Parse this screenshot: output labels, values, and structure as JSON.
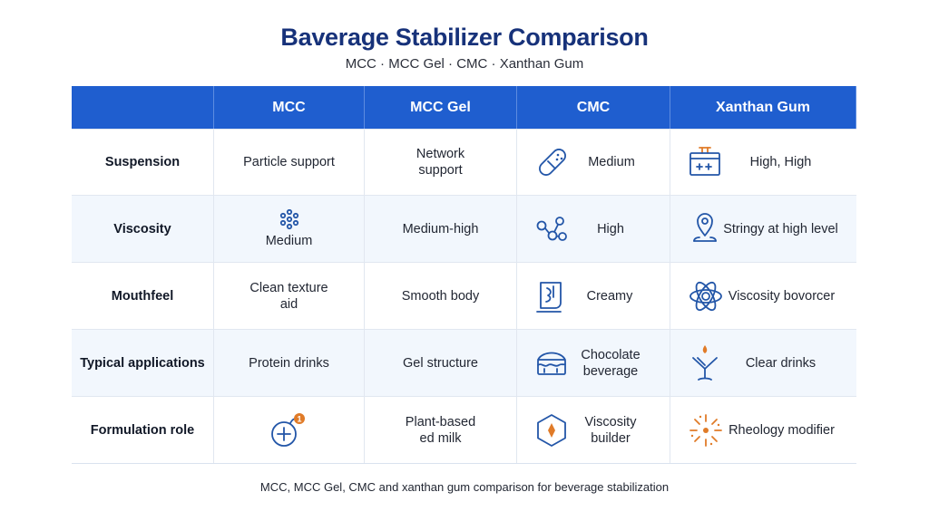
{
  "header": {
    "title": "Baverage Stabilizer Comparison",
    "subtitle": "MCC · MCC Gel · CMC · Xanthan Gum"
  },
  "table": {
    "columns": [
      "",
      "MCC",
      "MCC Gel",
      "CMC",
      "Xanthan Gum"
    ],
    "rows": [
      {
        "label": "Suspension",
        "cells": [
          {
            "text": "Particle support"
          },
          {
            "text": "Network support"
          },
          {
            "text": "Medium",
            "icon": "capsule-icon"
          },
          {
            "text": "High, High",
            "icon": "container-icon"
          }
        ]
      },
      {
        "label": "Viscosity",
        "cells": [
          {
            "text": "Medium",
            "icon": "particles-icon"
          },
          {
            "text": "Medium-high"
          },
          {
            "text": "High",
            "icon": "molecule-icon"
          },
          {
            "text": "Stringy at high level",
            "icon": "pin-icon"
          }
        ]
      },
      {
        "label": "Mouthfeel",
        "cells": [
          {
            "text": "Clean texture aid"
          },
          {
            "text": "Smooth body"
          },
          {
            "text": "Creamy",
            "icon": "cup-icon"
          },
          {
            "text": "Viscosity bovorcer",
            "icon": "atom-icon"
          }
        ]
      },
      {
        "label": "Typical applications",
        "cells": [
          {
            "text": "Protein drinks"
          },
          {
            "text": "Gel structure"
          },
          {
            "text": "Chocolate beverage",
            "icon": "chocolate-box-icon"
          },
          {
            "text": "Clear drinks",
            "icon": "cocktail-icon"
          }
        ]
      },
      {
        "label": "Formulation role",
        "cells": [
          {
            "text": "",
            "icon": "plus-badge-icon",
            "badge": "1"
          },
          {
            "text": "Plant-based ed milk"
          },
          {
            "text": "Viscosity builder",
            "icon": "hexagon-icon"
          },
          {
            "text": "Rheology modifier",
            "icon": "burst-icon"
          }
        ]
      }
    ]
  },
  "footer": {
    "caption": "MCC, MCC Gel, CMC and xanthan gum comparison for beverage stabilization"
  },
  "colors": {
    "header_bg": "#1f5ecf",
    "title": "#17327a",
    "icon_blue": "#2356a8",
    "icon_orange": "#e07b28",
    "row_alt": "#f2f7fd"
  }
}
